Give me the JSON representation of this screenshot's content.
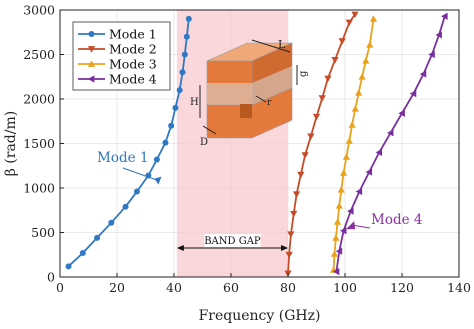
{
  "chart_data": {
    "type": "line",
    "xlabel": "Frequency (GHz)",
    "ylabel": "β (rad/m)",
    "xlim": [
      0,
      140
    ],
    "ylim": [
      0,
      3000
    ],
    "xticks": [
      0,
      20,
      40,
      60,
      80,
      100,
      120,
      140
    ],
    "yticks": [
      0,
      500,
      1000,
      1500,
      2000,
      2500,
      3000
    ],
    "grid": true,
    "legend_position": "top-left",
    "band_gap": {
      "label": "BAND GAP",
      "x_range": [
        41,
        80
      ],
      "color": "#f7c9cf"
    },
    "annotations": [
      {
        "text": "Mode 1",
        "color": "#2f78c4",
        "target": [
          37,
          1150
        ]
      },
      {
        "text": "Mode 4",
        "color": "#8a2fa8",
        "target": [
          99,
          650
        ]
      }
    ],
    "inset": {
      "labels": [
        "L",
        "g",
        "H",
        "r",
        "D"
      ]
    },
    "series": [
      {
        "name": "Mode 1",
        "color": "#2f78c4",
        "marker": "circle",
        "x": [
          3,
          8,
          13,
          18,
          23,
          27,
          31,
          34,
          37,
          39,
          40.5,
          42,
          43,
          43.8,
          44.5,
          45.2
        ],
        "y": [
          120,
          270,
          440,
          610,
          790,
          960,
          1140,
          1320,
          1510,
          1700,
          1900,
          2100,
          2300,
          2500,
          2700,
          2900
        ]
      },
      {
        "name": "Mode 2",
        "color": "#c64b28",
        "marker": "triangle-down",
        "x": [
          80,
          80.4,
          81,
          82,
          83,
          84.5,
          86,
          88,
          90,
          92,
          94,
          96.5,
          99,
          101.5,
          103.5
        ],
        "y": [
          40,
          250,
          480,
          710,
          930,
          1150,
          1370,
          1580,
          1800,
          2010,
          2230,
          2440,
          2650,
          2860,
          2950
        ]
      },
      {
        "name": "Mode 3",
        "color": "#e8a21c",
        "marker": "triangle-up",
        "x": [
          96,
          96.3,
          96.8,
          97.4,
          98,
          98.7,
          99.5,
          100.5,
          101.5,
          102.5,
          103.6,
          104.8,
          106,
          107.3,
          108.7,
          110
        ],
        "y": [
          80,
          260,
          440,
          620,
          800,
          980,
          1170,
          1350,
          1530,
          1710,
          1890,
          2070,
          2250,
          2430,
          2610,
          2900
        ]
      },
      {
        "name": "Mode 4",
        "color": "#7a2fa0",
        "marker": "triangle-left",
        "x": [
          97,
          98,
          99.5,
          102,
          105,
          108.5,
          112,
          116,
          120,
          124,
          127.5,
          130.5,
          133,
          135
        ],
        "y": [
          60,
          290,
          520,
          740,
          960,
          1180,
          1400,
          1620,
          1840,
          2060,
          2280,
          2500,
          2720,
          2930
        ]
      }
    ]
  }
}
